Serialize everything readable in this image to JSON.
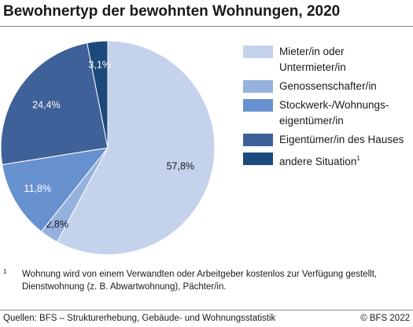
{
  "title": "Bewohnertyp der bewohnten Wohnungen, 2020",
  "chart_data": {
    "type": "pie",
    "title": "Bewohnertyp der bewohnten Wohnungen, 2020",
    "slices": [
      {
        "label": "Mieter/in oder Untermieter/in",
        "label_lines": [
          "Mieter/in oder",
          "Untermieter/in"
        ],
        "value": 57.8,
        "value_label": "57,8%",
        "color": "#c4d2ec"
      },
      {
        "label": "Genossenschafter/in",
        "label_lines": [
          "Genossenschafter/in"
        ],
        "value": 2.8,
        "value_label": "2,8%",
        "color": "#95b1de"
      },
      {
        "label": "Stockwerk-/Wohnungseigentümer/in",
        "label_lines": [
          "Stockwerk-/Wohnungs-",
          "eigentümer/in"
        ],
        "value": 11.8,
        "value_label": "11,8%",
        "color": "#6791cf"
      },
      {
        "label": "Eigentümer/in des Hauses",
        "label_lines": [
          "Eigentümer/in des Hauses"
        ],
        "value": 24.4,
        "value_label": "24,4%",
        "color": "#3f6199"
      },
      {
        "label": "andere Situation",
        "label_lines": [
          "andere Situation"
        ],
        "value": 3.1,
        "value_label": "3,1%",
        "color": "#1d4a7c",
        "footnote_mark": "1"
      }
    ],
    "legend": "right"
  },
  "footnote": {
    "mark": "1",
    "text": "Wohnung wird von einem Verwandten oder Arbeitgeber kostenlos zur Verfügung gestellt, Dienstwohnung (z. B. Abwartwohnung), Pächter/in."
  },
  "source": "Quellen: BFS – Strukturerhebung, Gebäude- und Wohnungsstatistik",
  "copyright": "© BFS 2022"
}
